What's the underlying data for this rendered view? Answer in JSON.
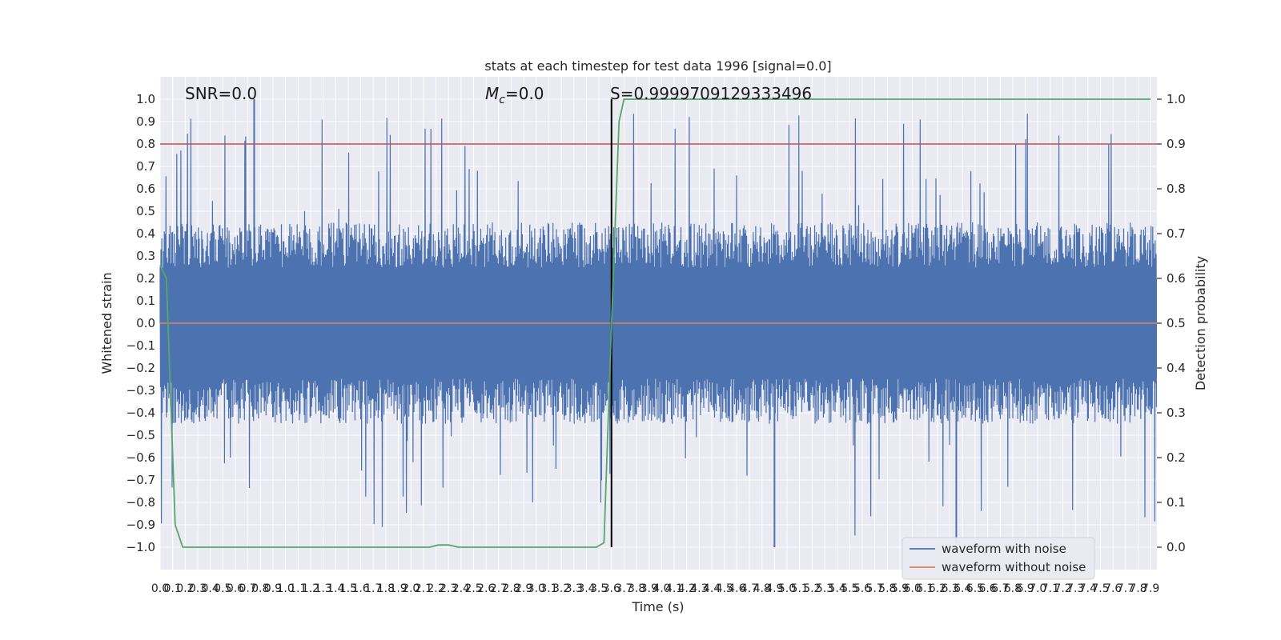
{
  "chart_data": {
    "type": "line",
    "title": "stats at each timestep for test data 1996 [signal=0.0]",
    "xlabel": "Time (s)",
    "ylabel": "Whitened strain",
    "y2label": "Detection probability",
    "xlim": [
      0.0,
      7.95
    ],
    "ylim": [
      -1.1,
      1.1
    ],
    "y2lim": [
      -0.05,
      1.05
    ],
    "x_ticks": [
      0.0,
      0.1,
      0.2,
      0.3,
      0.4,
      0.5,
      0.6,
      0.7,
      0.8,
      0.9,
      1.0,
      1.1,
      1.2,
      1.3,
      1.4,
      1.5,
      1.6,
      1.7,
      1.8,
      1.9,
      2.0,
      2.1,
      2.2,
      2.3,
      2.4,
      2.5,
      2.6,
      2.7,
      2.8,
      2.9,
      3.0,
      3.1,
      3.2,
      3.3,
      3.4,
      3.5,
      3.6,
      3.7,
      3.8,
      3.9,
      4.0,
      4.1,
      4.2,
      4.3,
      4.4,
      4.5,
      4.6,
      4.7,
      4.8,
      4.9,
      5.0,
      5.1,
      5.2,
      5.3,
      5.4,
      5.5,
      5.6,
      5.7,
      5.8,
      5.9,
      6.0,
      6.1,
      6.2,
      6.3,
      6.4,
      6.5,
      6.6,
      6.7,
      6.8,
      6.9,
      7.0,
      7.1,
      7.2,
      7.3,
      7.4,
      7.5,
      7.6,
      7.7,
      7.8,
      7.9
    ],
    "y_ticks": [
      -1.0,
      -0.9,
      -0.8,
      -0.7,
      -0.6,
      -0.5,
      -0.4,
      -0.3,
      -0.2,
      -0.1,
      0.0,
      0.1,
      0.2,
      0.3,
      0.4,
      0.5,
      0.6,
      0.7,
      0.8,
      0.9,
      1.0
    ],
    "y2_ticks": [
      0.0,
      0.1,
      0.2,
      0.3,
      0.4,
      0.5,
      0.6,
      0.7,
      0.8,
      0.9,
      1.0
    ],
    "grid": true,
    "legend_position": "bottom-right",
    "annotations": {
      "snr": "SNR=0.0",
      "mc_symbol": "M",
      "mc_sub": "c",
      "mc_value": "=0.0",
      "s": "S=0.9999709129333496"
    },
    "threshold_line": {
      "axis": "y2",
      "value": 0.9,
      "color": "#c44e52"
    },
    "marker_line": {
      "x": 3.6,
      "y_range": [
        -1.0,
        1.0
      ],
      "color": "#000000"
    },
    "series": [
      {
        "name": "waveform with noise",
        "color": "#4c72b0",
        "axis": "y",
        "description_values": {
          "envelope_typical": 0.45,
          "min": -1.0,
          "max": 1.0
        }
      },
      {
        "name": "waveform without noise",
        "color": "#dd8452",
        "axis": "y",
        "value": 0.0
      },
      {
        "name": "detection probability",
        "color": "#55a868",
        "axis": "y2",
        "x": [
          0.0,
          0.05,
          0.12,
          0.18,
          2.15,
          2.22,
          2.3,
          2.38,
          3.48,
          3.54,
          3.6,
          3.66,
          3.7,
          7.9
        ],
        "values": [
          0.63,
          0.6,
          0.05,
          0.0,
          0.0,
          0.005,
          0.005,
          0.0,
          0.0,
          0.01,
          0.5,
          0.95,
          1.0,
          1.0
        ]
      }
    ],
    "colors": {
      "plot_background": "#eaeaf2",
      "grid": "#ffffff"
    }
  }
}
